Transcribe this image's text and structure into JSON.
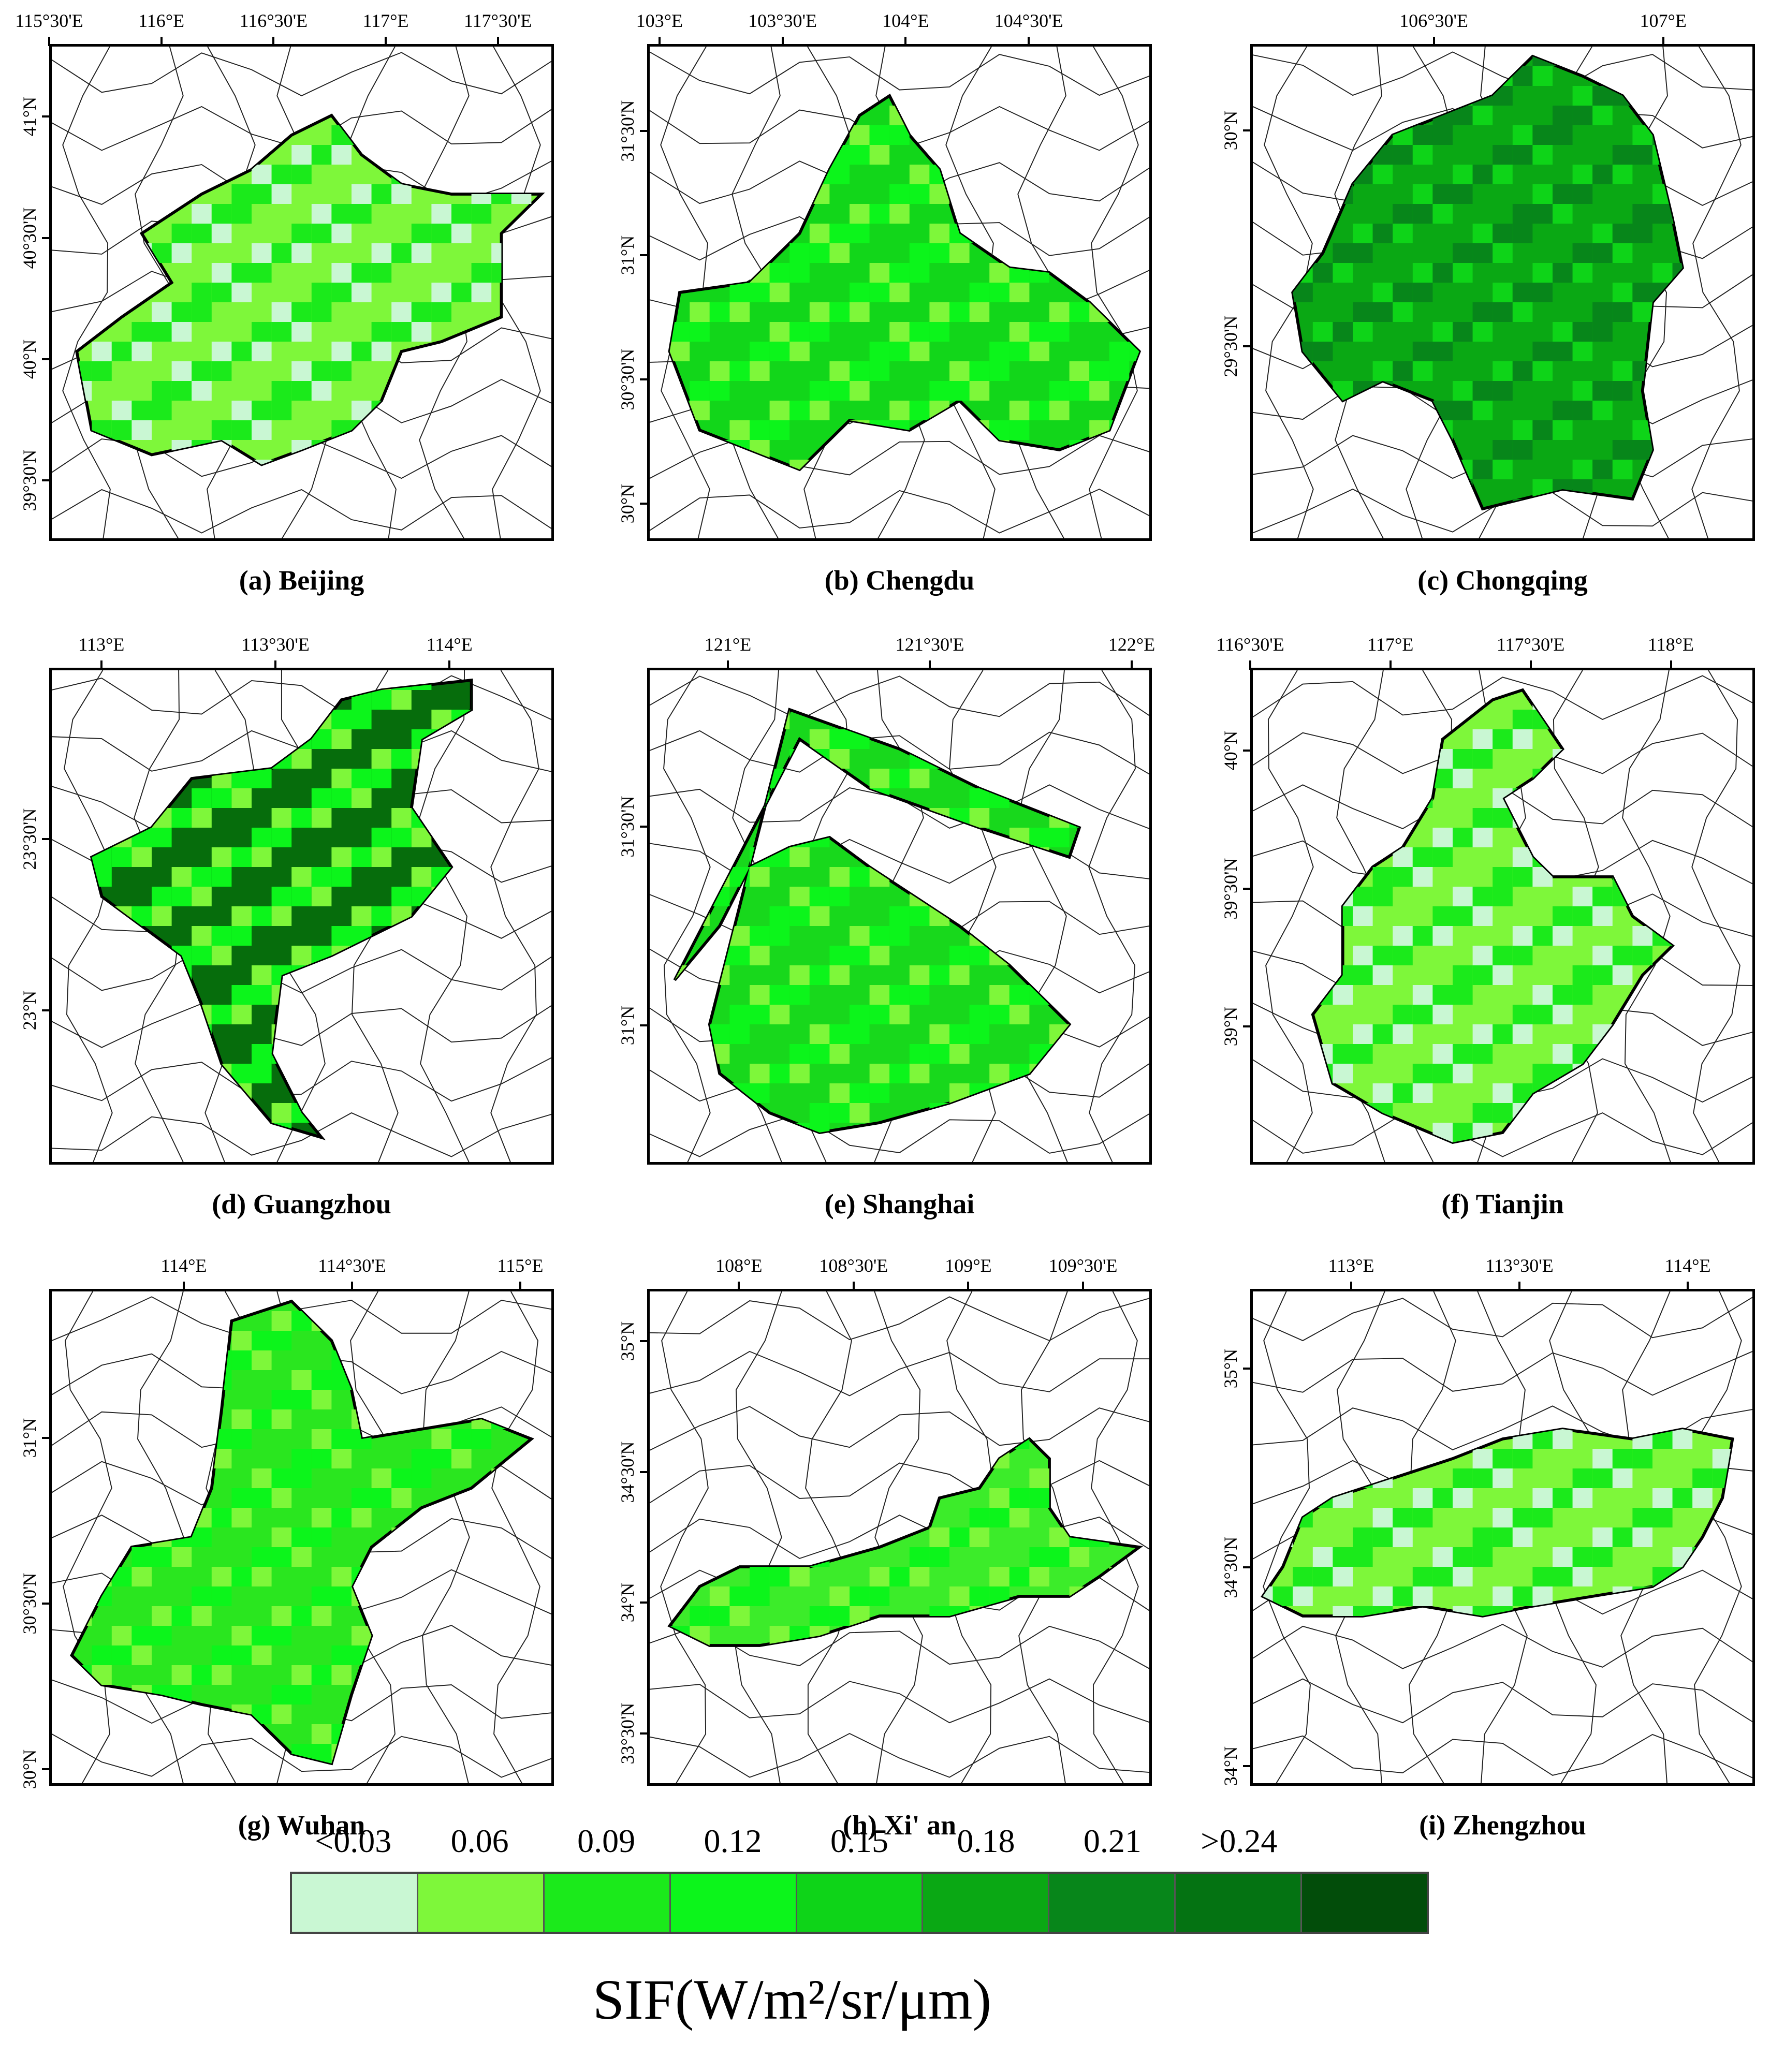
{
  "panels": [
    {
      "id": "beijing",
      "caption": "(a) Beijing",
      "lon_labels": [
        "115°30'E",
        "116°E",
        "116°30'E",
        "117°E",
        "117°30'E"
      ],
      "lat_labels": [
        "41°N",
        "40°30'N",
        "40°N",
        "39°30'N"
      ],
      "lon_range": [
        115.5,
        117.75
      ],
      "lat_range": [
        39.25,
        41.3
      ],
      "lon_ticks": [
        115.5,
        116.0,
        116.5,
        117.0,
        117.5
      ],
      "lat_ticks": [
        41.0,
        40.5,
        40.0,
        39.5
      ],
      "region_color": "#7ef73a",
      "dominant_sif_range": "0.06"
    },
    {
      "id": "chengdu",
      "caption": "(b) Chengdu",
      "lon_labels": [
        "103°E",
        "103°30'E",
        "104°E",
        "104°30'E"
      ],
      "lat_labels": [
        "31°30'N",
        "31°N",
        "30°30'N",
        "30°N"
      ],
      "lon_range": [
        102.95,
        105.0
      ],
      "lat_range": [
        29.85,
        31.85
      ],
      "lon_ticks": [
        103.0,
        103.5,
        104.0,
        104.5
      ],
      "lat_ticks": [
        31.5,
        31.0,
        30.5,
        30.0
      ],
      "region_color": "#12d61a",
      "dominant_sif_range": "0.15"
    },
    {
      "id": "chongqing",
      "caption": "(c) Chongqing",
      "lon_labels": [
        "106°30'E",
        "107°E"
      ],
      "lat_labels": [
        "30°N",
        "29°30'N"
      ],
      "lon_range": [
        106.1,
        107.2
      ],
      "lat_range": [
        29.05,
        30.2
      ],
      "lon_ticks": [
        106.5,
        107.0
      ],
      "lat_ticks": [
        30.0,
        29.5
      ],
      "region_color": "#0aa814",
      "dominant_sif_range": "0.18"
    },
    {
      "id": "guangzhou",
      "caption": "(d) Guangzhou",
      "lon_labels": [
        "113°E",
        "113°30'E",
        "114°E"
      ],
      "lat_labels": [
        "23°30'N",
        "23°N"
      ],
      "lon_range": [
        112.85,
        114.3
      ],
      "lat_range": [
        22.55,
        24.0
      ],
      "lon_ticks": [
        113.0,
        113.5,
        114.0
      ],
      "lat_ticks": [
        23.5,
        23.0
      ],
      "region_color": "#066d0c",
      "dominant_sif_range": ">0.24"
    },
    {
      "id": "shanghai",
      "caption": "(e) Shanghai",
      "lon_labels": [
        "121°E",
        "121°30'E",
        "122°E"
      ],
      "lat_labels": [
        "31°30'N",
        "31°N"
      ],
      "lon_range": [
        120.8,
        122.05
      ],
      "lat_range": [
        30.65,
        31.9
      ],
      "lon_ticks": [
        121.0,
        121.5,
        122.0
      ],
      "lat_ticks": [
        31.5,
        31.0
      ],
      "region_color": "#18d81c",
      "dominant_sif_range": "0.15"
    },
    {
      "id": "tianjin",
      "caption": "(f) Tianjin",
      "lon_labels": [
        "116°30'E",
        "117°E",
        "117°30'E",
        "118°E"
      ],
      "lat_labels": [
        "40°N",
        "39°30'N",
        "39°N"
      ],
      "lon_range": [
        116.5,
        118.3
      ],
      "lat_range": [
        38.5,
        40.3
      ],
      "lon_ticks": [
        116.5,
        117.0,
        117.5,
        118.0
      ],
      "lat_ticks": [
        40.0,
        39.5,
        39.0
      ],
      "region_color": "#7ef73a",
      "dominant_sif_range": "0.06"
    },
    {
      "id": "wuhan",
      "caption": "(g) Wuhan",
      "lon_labels": [
        "114°E",
        "114°30'E",
        "115°E"
      ],
      "lat_labels": [
        "31°N",
        "30°30'N",
        "30°N"
      ],
      "lon_range": [
        113.6,
        115.1
      ],
      "lat_range": [
        29.95,
        31.45
      ],
      "lon_ticks": [
        114.0,
        114.5,
        115.0
      ],
      "lat_ticks": [
        31.0,
        30.5,
        30.0
      ],
      "region_color": "#2ae61f",
      "dominant_sif_range": "0.12"
    },
    {
      "id": "xian",
      "caption": "(h) Xi' an",
      "lon_labels": [
        "108°E",
        "108°30'E",
        "109°E",
        "109°30'E"
      ],
      "lat_labels": [
        "35°N",
        "34°30'N",
        "34°N",
        "33°30'N"
      ],
      "lon_range": [
        107.6,
        109.8
      ],
      "lat_range": [
        33.3,
        35.2
      ],
      "lon_ticks": [
        108.0,
        108.5,
        109.0,
        109.5
      ],
      "lat_ticks": [
        35.0,
        34.5,
        34.0,
        33.5
      ],
      "region_color": "#3cec2a",
      "dominant_sif_range": "0.09"
    },
    {
      "id": "zhengzhou",
      "caption": "(i) Zhengzhou",
      "lon_labels": [
        "113°E",
        "113°30'E",
        "114°E"
      ],
      "lat_labels": [
        "35°N",
        "34°30'N",
        "34°N"
      ],
      "lon_range": [
        112.7,
        114.2
      ],
      "lat_range": [
        33.95,
        35.2
      ],
      "lon_ticks": [
        113.0,
        113.5,
        114.0
      ],
      "lat_ticks": [
        35.0,
        34.5,
        34.0
      ],
      "region_color": "#7ef73a",
      "dominant_sif_range": "0.06"
    }
  ],
  "legend": {
    "title": "SIF(W/m²/sr/μm)",
    "labels": [
      "<0.03",
      "0.06",
      "0.09",
      "0.12",
      "0.15",
      "0.18",
      "0.21",
      ">0.24"
    ],
    "colors": [
      "#c9f7d3",
      "#7ef73a",
      "#1bea1b",
      "#0cf51b",
      "#0ed418",
      "#0aa814",
      "#07861a",
      "#047312",
      "#024d0a"
    ]
  }
}
